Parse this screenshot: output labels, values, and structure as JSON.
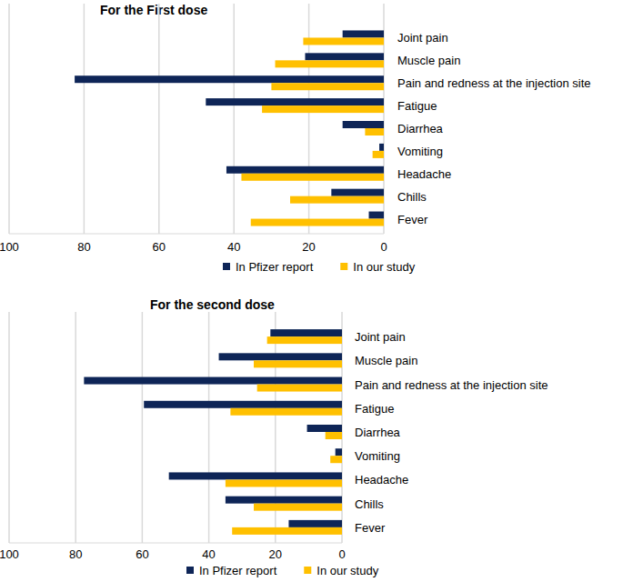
{
  "chart_data": [
    {
      "type": "bar",
      "title": "For the First dose",
      "orientation": "horizontal",
      "categories": [
        "Joint pain",
        "Muscle pain",
        "Pain and redness at the injection site",
        "Fatigue",
        "Diarrhea",
        "Vomiting",
        "Headache",
        "Chills",
        "Fever"
      ],
      "series": [
        {
          "name": "In Pfizer report",
          "color": "#0e2557",
          "values": [
            11,
            21,
            82.5,
            47.5,
            11,
            1.2,
            42,
            14,
            4
          ]
        },
        {
          "name": "In our study",
          "color": "#ffc000",
          "values": [
            21.5,
            29,
            30,
            32.5,
            5,
            3,
            38,
            25,
            35.5
          ]
        }
      ],
      "xlim": [
        100,
        0
      ],
      "xticks": [
        100,
        80,
        60,
        40,
        20,
        0
      ],
      "grid": true,
      "legend": "bottom"
    },
    {
      "type": "bar",
      "title": "For the second dose",
      "orientation": "horizontal",
      "categories": [
        "Joint pain",
        "Muscle pain",
        "Pain and redness at the injection site",
        "Fatigue",
        "Diarrhea",
        "Vomiting",
        "Headache",
        "Chills",
        "Fever"
      ],
      "series": [
        {
          "name": "In Pfizer report",
          "color": "#0e2557",
          "values": [
            21.5,
            37,
            77.5,
            59.5,
            10.5,
            2,
            52,
            35,
            16
          ]
        },
        {
          "name": "In our study",
          "color": "#ffc000",
          "values": [
            22.5,
            26.5,
            25.5,
            33.5,
            5,
            3.5,
            35,
            26.5,
            33
          ]
        }
      ],
      "xlim": [
        100,
        0
      ],
      "xticks": [
        100,
        80,
        60,
        40,
        20,
        0
      ],
      "grid": true,
      "legend": "bottom"
    }
  ]
}
